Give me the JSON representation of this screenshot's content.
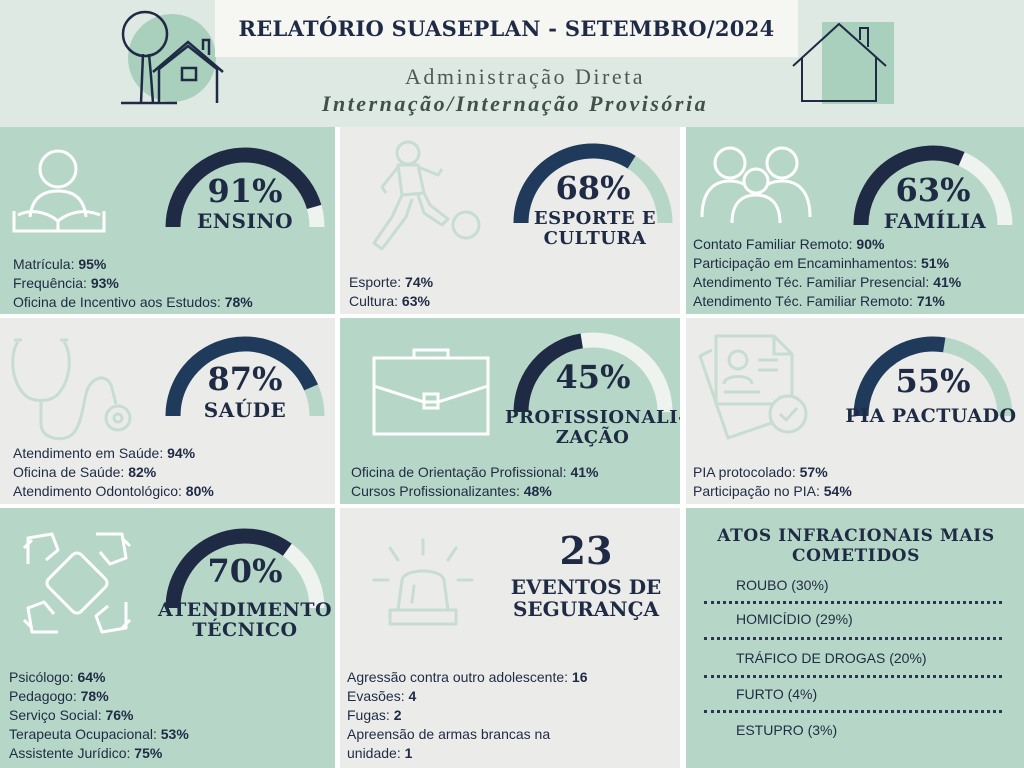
{
  "header": {
    "title": "RELATÓRIO SUASEPLAN - SETEMBRO/2024",
    "subtitle1": "Administração Direta",
    "subtitle2": "Internação/Internação Provisória"
  },
  "colors": {
    "dark": "#1f2a44",
    "light_track": "#d7ece1",
    "light_track_alt": "#eeeeee",
    "green_panel": "#b6d7c7",
    "grey_panel": "#ebebea"
  },
  "panels": {
    "ensino": {
      "icon": "reading-person-icon",
      "percent": "91%",
      "value": 91,
      "label": "ENSINO",
      "items": [
        {
          "label": "Matrícula: ",
          "value": "95%"
        },
        {
          "label": "Frequência: ",
          "value": "93%"
        },
        {
          "label": "Oficina de Incentivo aos Estudos: ",
          "value": "78%"
        }
      ]
    },
    "esporte": {
      "icon": "soccer-player-icon",
      "percent": "68%",
      "value": 68,
      "label_line1": "ESPORTE E",
      "label_line2": "CULTURA",
      "items": [
        {
          "label": "Esporte: ",
          "value": "74%"
        },
        {
          "label": "Cultura: ",
          "value": "63%"
        }
      ]
    },
    "familia": {
      "icon": "family-icon",
      "percent": "63%",
      "value": 63,
      "label": "FAMÍLIA",
      "items": [
        {
          "label": "Contato Familiar Remoto: ",
          "value": "90%"
        },
        {
          "label": "Participação em Encaminhamentos: ",
          "value": "51%"
        },
        {
          "label": "Atendimento Téc. Familiar Presencial: ",
          "value": "41%"
        },
        {
          "label": "Atendimento Téc. Familiar Remoto: ",
          "value": "71%"
        }
      ]
    },
    "saude": {
      "icon": "stethoscope-icon",
      "percent": "87%",
      "value": 87,
      "label": "SAÚDE",
      "items": [
        {
          "label": "Atendimento em Saúde: ",
          "value": "94%"
        },
        {
          "label": "Oficina de Saúde: ",
          "value": "82%"
        },
        {
          "label": "Atendimento Odontológico: ",
          "value": "80%"
        }
      ]
    },
    "profissionalizacao": {
      "icon": "briefcase-icon",
      "percent": "45%",
      "value": 45,
      "label_line1": "PROFISSIONALI-",
      "label_line2": "ZAÇÃO",
      "items": [
        {
          "label": "Oficina de Orientação Profissional: ",
          "value": "41%"
        },
        {
          "label": "Cursos Profissionalizantes: ",
          "value": "48%"
        }
      ]
    },
    "pia": {
      "icon": "document-approved-icon",
      "percent": "55%",
      "value": 55,
      "label": "PIA PACTUADO",
      "items": [
        {
          "label": "PIA protocolado: ",
          "value": "57%"
        },
        {
          "label": "Participação no PIA: ",
          "value": "54%"
        }
      ]
    },
    "atendimento": {
      "icon": "joined-hands-icon",
      "percent": "70%",
      "value": 70,
      "label_line1": "ATENDIMENTO",
      "label_line2": "TÉCNICO",
      "items": [
        {
          "label": "Psicólogo: ",
          "value": "64%"
        },
        {
          "label": "Pedagogo: ",
          "value": "78%"
        },
        {
          "label": "Serviço Social: ",
          "value": "76%"
        },
        {
          "label": "Terapeuta Ocupacional: ",
          "value": "53%"
        },
        {
          "label": "Assistente Jurídico: ",
          "value": "75%"
        }
      ]
    },
    "seguranca": {
      "icon": "siren-icon",
      "number": "23",
      "label_line1": "EVENTOS DE",
      "label_line2": "SEGURANÇA",
      "items": [
        {
          "label": "Agressão contra outro adolescente: ",
          "value": "16"
        },
        {
          "label": "Evasões: ",
          "value": "4"
        },
        {
          "label": "Fugas: ",
          "value": "2"
        },
        {
          "label": "Apreensão de armas brancas na",
          "value": ""
        },
        {
          "label": "unidade: ",
          "value": "1"
        }
      ]
    },
    "atos": {
      "title_line1": "ATOS INFRACIONAIS MAIS",
      "title_line2": "COMETIDOS",
      "items": [
        "ROUBO (30%)",
        "HOMICÍDIO (29%)",
        "TRÁFICO DE DROGAS (20%)",
        "FURTO (4%)",
        "ESTUPRO (3%)"
      ]
    }
  }
}
